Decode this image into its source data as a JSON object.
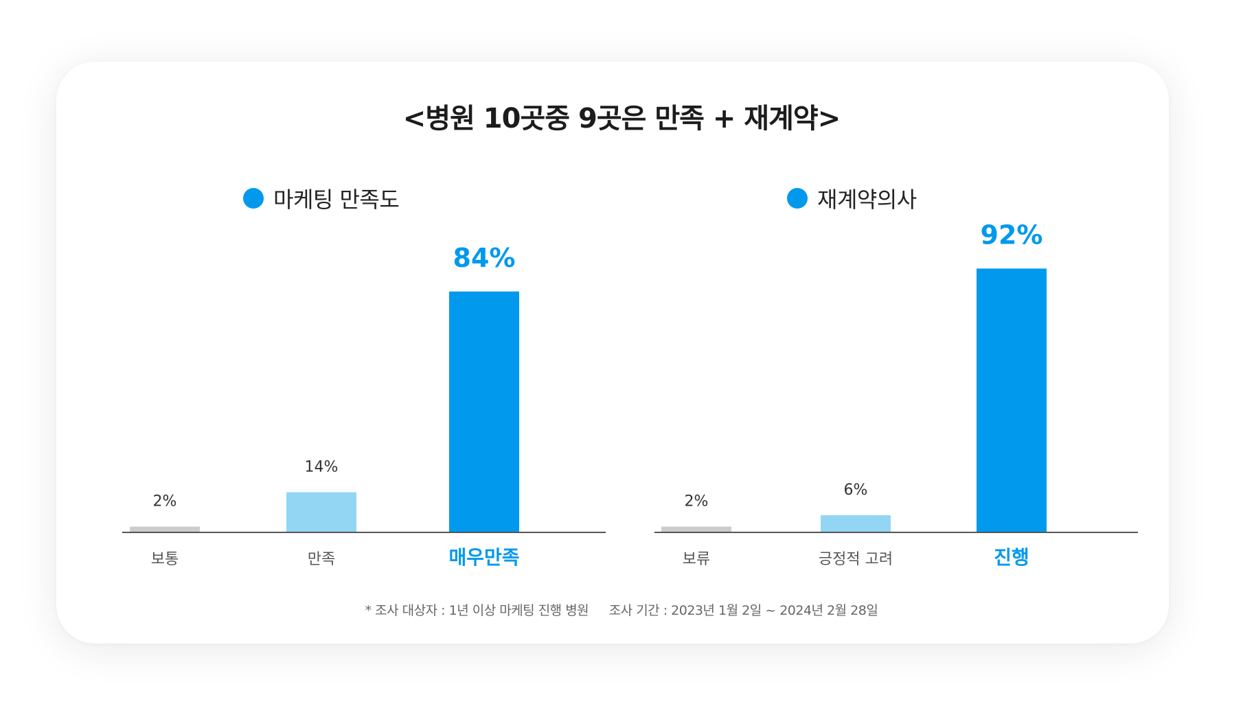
{
  "title": "<병원 10곳중 9곳은 만족 + 재계약>",
  "colors": {
    "accent": "#0099EE",
    "light": "#92D6F4",
    "gray": "#CCCCCC",
    "axis": "#555555",
    "dark_text": "#333333",
    "muted_text": "#555555"
  },
  "chart_data": [
    {
      "type": "bar",
      "legend": "마케팅 만족도",
      "categories": [
        "보통",
        "만족",
        "매우만족"
      ],
      "values": [
        2,
        14,
        84
      ],
      "value_labels": [
        "2%",
        "14%",
        "84%"
      ],
      "highlight_index": 2,
      "ylim": [
        0,
        100
      ]
    },
    {
      "type": "bar",
      "legend": "재계약의사",
      "categories": [
        "보류",
        "긍정적 고려",
        "진행"
      ],
      "values": [
        2,
        6,
        92
      ],
      "value_labels": [
        "2%",
        "6%",
        "92%"
      ],
      "highlight_index": 2,
      "ylim": [
        0,
        100
      ]
    }
  ],
  "footnote": {
    "target": "* 조사 대상자 : 1년 이상 마케팅 진행 병원",
    "period": "조사 기간 : 2023년 1월 2일 ~ 2024년 2월 28일"
  }
}
